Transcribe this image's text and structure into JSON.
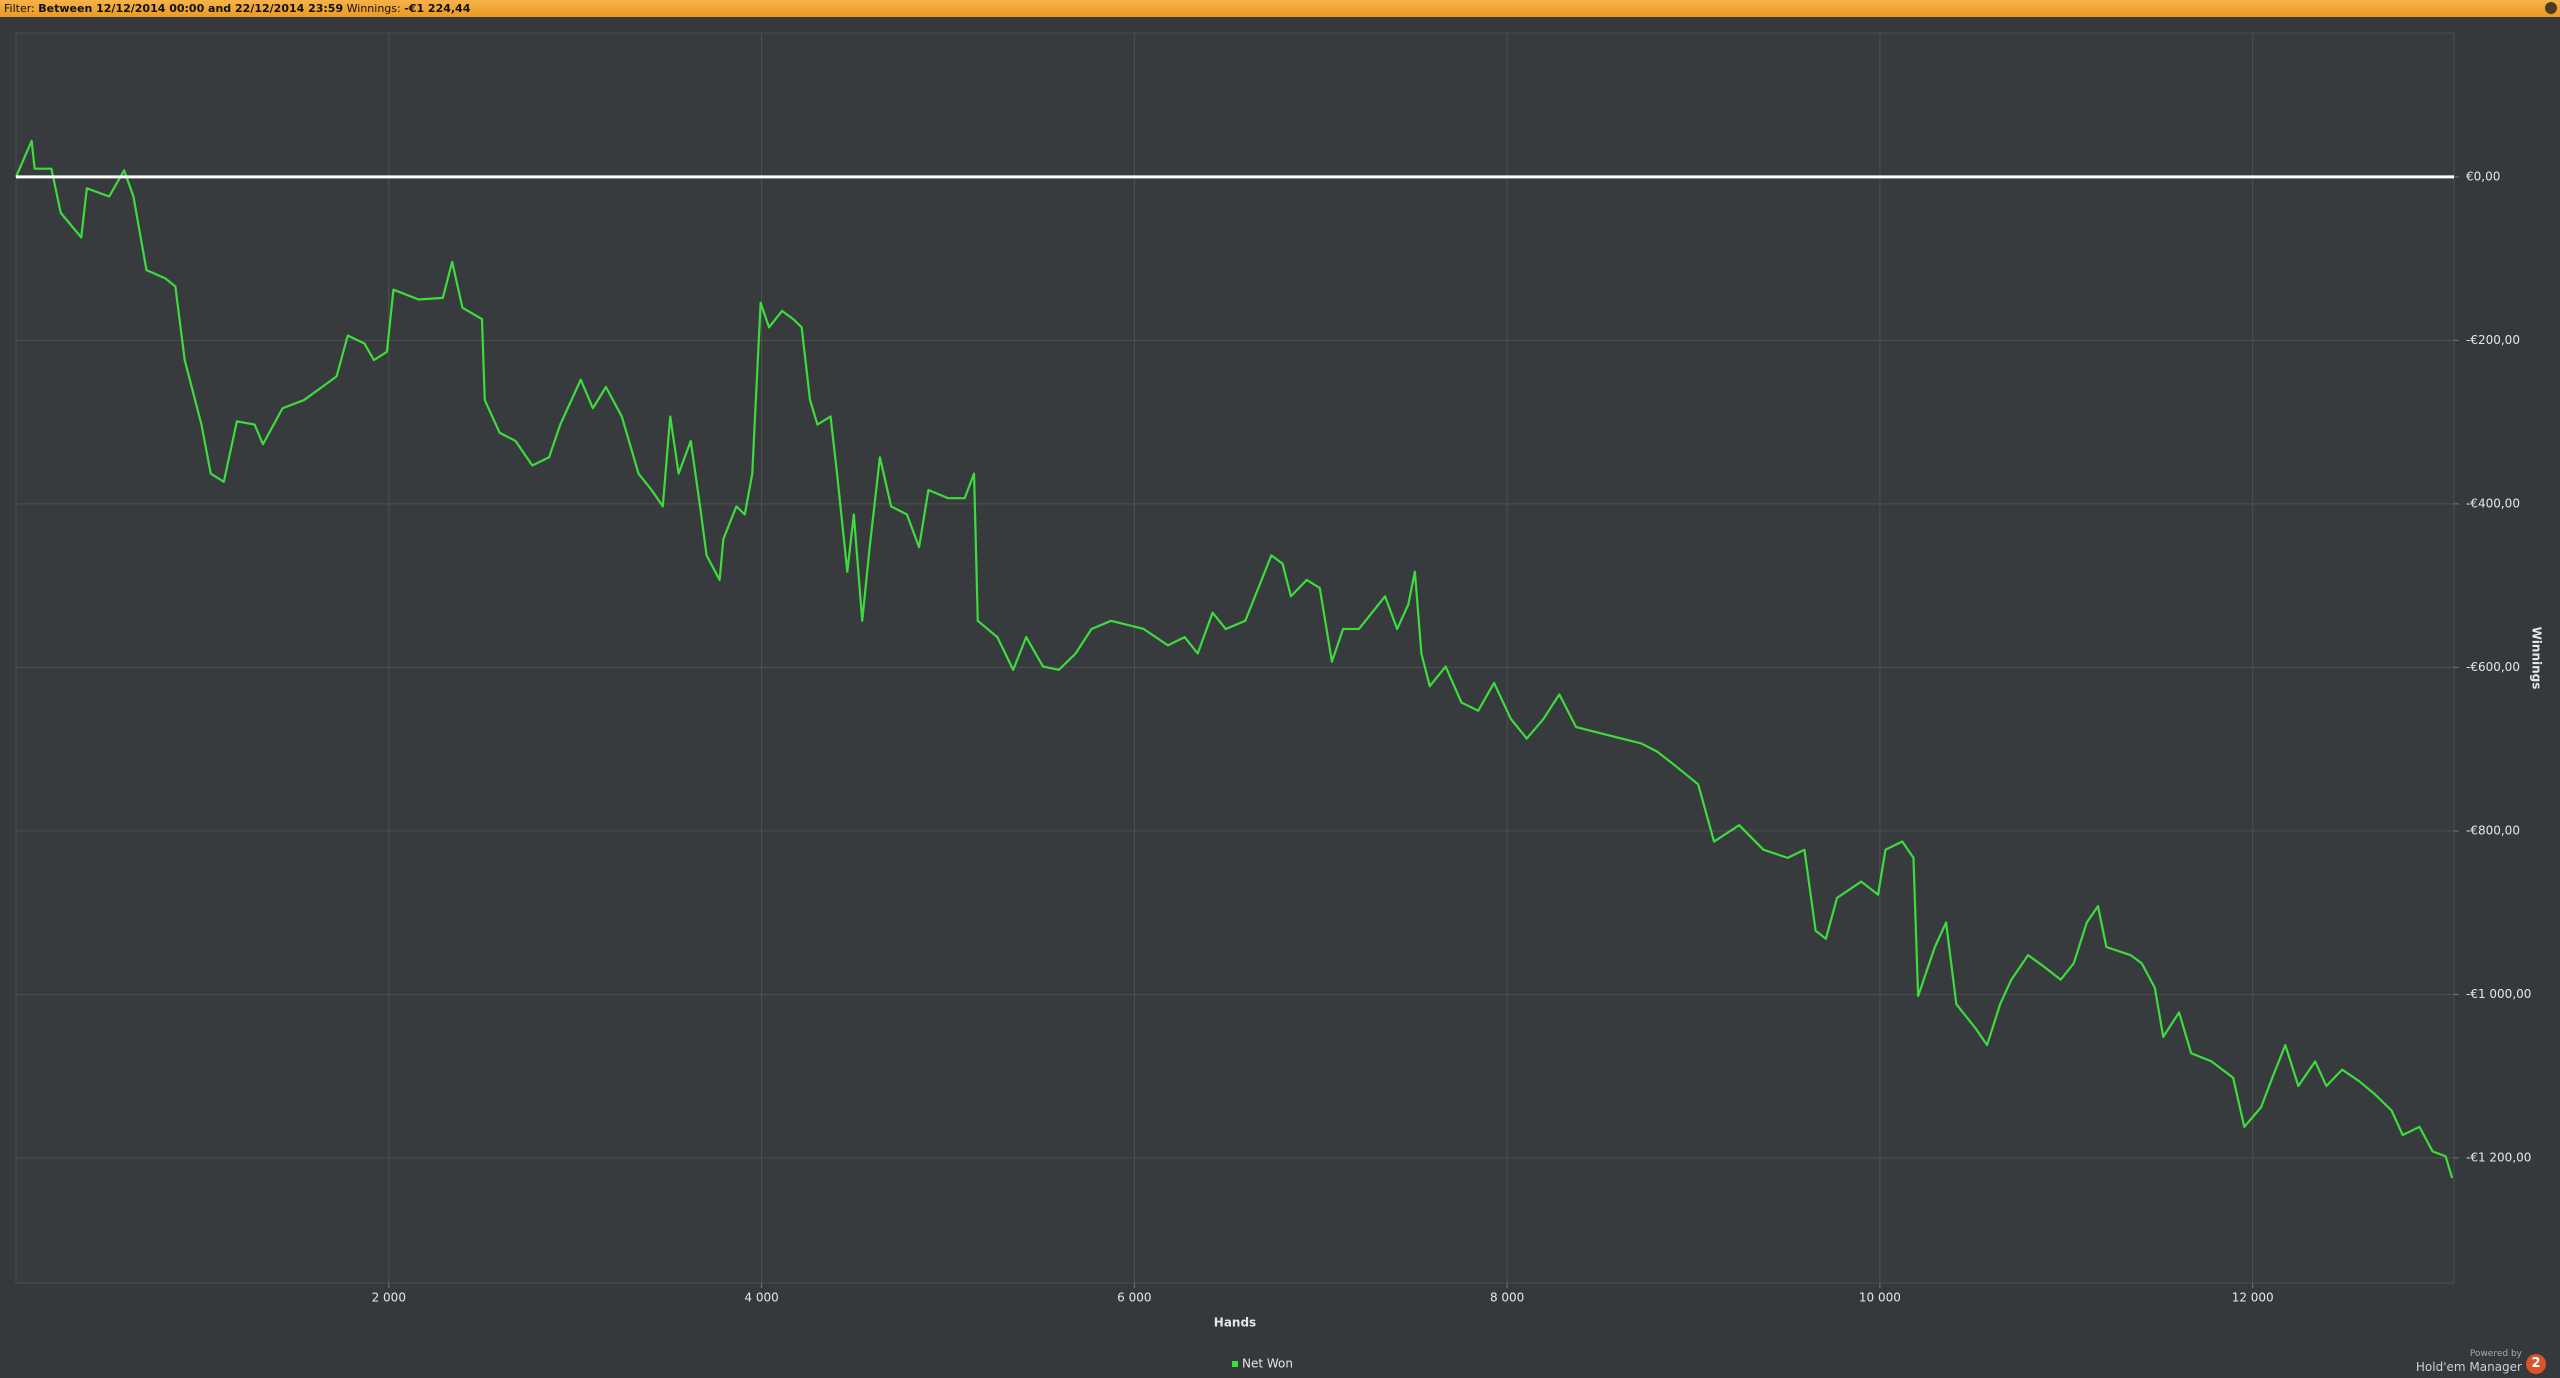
{
  "header": {
    "filter_label": "Filter:",
    "filter_value": "Between 12/12/2014 00:00 and 22/12/2014 23:59",
    "winnings_label": "Winnings:",
    "winnings_value": "-€1 224,44"
  },
  "chart_data": {
    "type": "line",
    "x_label": "Hands",
    "y_label": "Winnings",
    "xlim": [
      0,
      13080
    ],
    "ylim": [
      -1353,
      176
    ],
    "xticks": [
      {
        "value": 2000,
        "label": "2 000"
      },
      {
        "value": 4000,
        "label": "4 000"
      },
      {
        "value": 6000,
        "label": "6 000"
      },
      {
        "value": 8000,
        "label": "8 000"
      },
      {
        "value": 10000,
        "label": "10 000"
      },
      {
        "value": 12000,
        "label": "12 000"
      }
    ],
    "yticks": [
      {
        "value": 0,
        "label": "€0,00"
      },
      {
        "value": -200,
        "label": "-€200,00"
      },
      {
        "value": -400,
        "label": "-€400,00"
      },
      {
        "value": -600,
        "label": "-€600,00"
      },
      {
        "value": -800,
        "label": "-€800,00"
      },
      {
        "value": -1000,
        "label": "-€1 000,00"
      },
      {
        "value": -1200,
        "label": "-€1 200,00"
      }
    ],
    "grid": true,
    "legend": "bottom",
    "series": [
      {
        "name": "Net Won",
        "color": "#3ddc3d",
        "x": [
          0,
          84,
          100,
          190,
          240,
          350,
          380,
          500,
          580,
          630,
          700,
          800,
          855,
          905,
          995,
          1045,
          1115,
          1185,
          1280,
          1325,
          1430,
          1545,
          1630,
          1720,
          1780,
          1870,
          1920,
          1990,
          2025,
          2160,
          2290,
          2340,
          2395,
          2500,
          2515,
          2595,
          2680,
          2770,
          2860,
          2920,
          3030,
          3095,
          3165,
          3250,
          3340,
          3410,
          3470,
          3510,
          3555,
          3620,
          3670,
          3705,
          3775,
          3795,
          3865,
          3910,
          3950,
          3995,
          4040,
          4110,
          4170,
          4215,
          4260,
          4300,
          4370,
          4405,
          4460,
          4495,
          4540,
          4580,
          4635,
          4695,
          4780,
          4845,
          4895,
          5000,
          5090,
          5140,
          5160,
          5265,
          5350,
          5420,
          5510,
          5595,
          5685,
          5770,
          5875,
          6050,
          6180,
          6270,
          6340,
          6420,
          6490,
          6595,
          6665,
          6735,
          6795,
          6840,
          6925,
          6995,
          7060,
          7120,
          7205,
          7275,
          7345,
          7410,
          7470,
          7505,
          7540,
          7585,
          7670,
          7755,
          7845,
          7930,
          8020,
          8105,
          8195,
          8280,
          8370,
          8545,
          8720,
          8805,
          8895,
          9025,
          9110,
          9245,
          9375,
          9505,
          9595,
          9655,
          9710,
          9770,
          9900,
          9990,
          10030,
          10120,
          10180,
          10205,
          10295,
          10355,
          10410,
          10515,
          10575,
          10645,
          10705,
          10795,
          10880,
          10970,
          11040,
          11110,
          11170,
          11215,
          11345,
          11405,
          11475,
          11520,
          11605,
          11670,
          11780,
          11895,
          11955,
          12045,
          12105,
          12175,
          12245,
          12335,
          12395,
          12480,
          12570,
          12655,
          12745,
          12805,
          12895,
          12965,
          13035,
          13070
        ],
        "values": [
          0,
          44,
          10,
          10,
          -44,
          -74,
          -14,
          -24,
          8,
          -24,
          -114,
          -124,
          -134,
          -224,
          -303,
          -363,
          -373,
          -299,
          -303,
          -327,
          -283,
          -273,
          -259,
          -244,
          -194,
          -204,
          -224,
          -214,
          -138,
          -150,
          -148,
          -104,
          -160,
          -174,
          -273,
          -313,
          -323,
          -353,
          -343,
          -303,
          -248,
          -283,
          -257,
          -293,
          -363,
          -383,
          -403,
          -293,
          -363,
          -323,
          -403,
          -463,
          -493,
          -443,
          -403,
          -413,
          -363,
          -154,
          -184,
          -164,
          -174,
          -184,
          -273,
          -303,
          -293,
          -363,
          -483,
          -413,
          -543,
          -453,
          -343,
          -403,
          -413,
          -453,
          -383,
          -393,
          -393,
          -363,
          -543,
          -563,
          -603,
          -563,
          -599,
          -603,
          -583,
          -553,
          -543,
          -553,
          -573,
          -563,
          -583,
          -533,
          -553,
          -543,
          -503,
          -463,
          -473,
          -513,
          -493,
          -503,
          -593,
          -553,
          -553,
          -533,
          -513,
          -553,
          -523,
          -483,
          -583,
          -623,
          -599,
          -643,
          -653,
          -619,
          -663,
          -687,
          -663,
          -633,
          -673,
          -683,
          -693,
          -703,
          -719,
          -743,
          -813,
          -793,
          -823,
          -833,
          -823,
          -922,
          -932,
          -882,
          -862,
          -878,
          -823,
          -813,
          -833,
          -1002,
          -942,
          -912,
          -1012,
          -1042,
          -1062,
          -1012,
          -982,
          -952,
          -966,
          -982,
          -962,
          -912,
          -892,
          -942,
          -952,
          -962,
          -992,
          -1052,
          -1022,
          -1072,
          -1082,
          -1102,
          -1162,
          -1138,
          -1102,
          -1062,
          -1112,
          -1082,
          -1112,
          -1092,
          -1106,
          -1122,
          -1142,
          -1172,
          -1162,
          -1192,
          -1198,
          -1224.44
        ]
      }
    ]
  },
  "footer": {
    "powered_by": "Powered by",
    "brand": "Hold'em Manager",
    "version": "2"
  }
}
